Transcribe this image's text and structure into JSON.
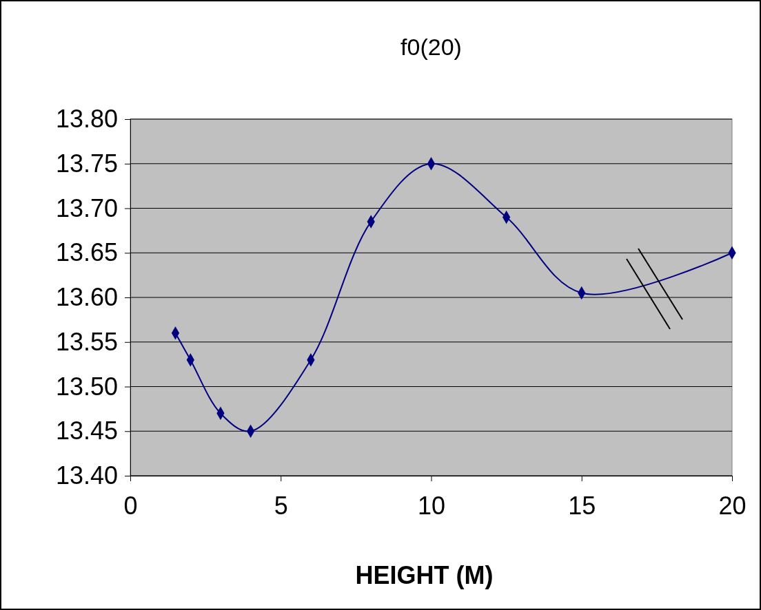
{
  "chart_data": {
    "type": "line",
    "title": "f0(20)",
    "xlabel": "HEIGHT (M)",
    "x": [
      1.5,
      2,
      3,
      4,
      6,
      8,
      10,
      12.5,
      15,
      20
    ],
    "series": [
      {
        "color": "#000080",
        "values": [
          13.56,
          13.53,
          13.47,
          13.45,
          13.53,
          13.685,
          13.75,
          13.69,
          13.605,
          13.65
        ]
      }
    ],
    "xlim": [
      0,
      20
    ],
    "xticks": [
      0,
      5,
      10,
      15,
      20
    ],
    "ylim": [
      13.4,
      13.8
    ],
    "yticks": [
      {
        "value": 13.4,
        "label": "13.40"
      },
      {
        "value": 13.45,
        "label": "13.45"
      },
      {
        "value": 13.5,
        "label": "13.50"
      },
      {
        "value": 13.55,
        "label": "13.55"
      },
      {
        "value": 13.6,
        "label": "13.60"
      },
      {
        "value": 13.65,
        "label": "13.65"
      },
      {
        "value": 13.7,
        "label": "13.70"
      },
      {
        "value": 13.75,
        "label": "13.75"
      },
      {
        "value": 13.8,
        "label": "13.80"
      }
    ],
    "grid": "y",
    "marker": "diamond",
    "line_style": "solid"
  }
}
